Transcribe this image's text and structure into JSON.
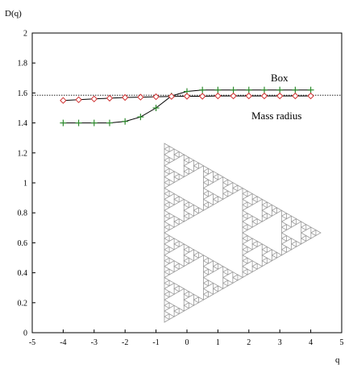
{
  "chart_data": {
    "type": "line",
    "title": "",
    "ylabel": "D(q)",
    "xlabel": "q",
    "xlim": [
      -5,
      5
    ],
    "ylim": [
      0,
      2
    ],
    "xticks": [
      -5,
      -4,
      -3,
      -2,
      -1,
      0,
      1,
      2,
      3,
      4,
      5
    ],
    "yticks": [
      0,
      0.2,
      0.4,
      0.6,
      0.8,
      1,
      1.2,
      1.4,
      1.6,
      1.8,
      2
    ],
    "ytick_labels": [
      "0",
      "0.2",
      "0.4",
      "0.6",
      "0.8",
      "1",
      "1.2",
      "1.4",
      "1.6",
      "1.8",
      "2"
    ],
    "grid": false,
    "series": [
      {
        "name": "Box",
        "marker": "plus",
        "color": "#2e8b2e",
        "points": [
          [
            -4,
            1.4
          ],
          [
            -3.5,
            1.4
          ],
          [
            -3,
            1.4
          ],
          [
            -2.5,
            1.4
          ],
          [
            -2,
            1.41
          ],
          [
            -1.5,
            1.44
          ],
          [
            -1,
            1.5
          ],
          [
            -0.5,
            1.58
          ],
          [
            0,
            1.61
          ],
          [
            0.5,
            1.62
          ],
          [
            1,
            1.62
          ],
          [
            1.5,
            1.62
          ],
          [
            2,
            1.62
          ],
          [
            2.5,
            1.62
          ],
          [
            3,
            1.62
          ],
          [
            3.5,
            1.62
          ],
          [
            4,
            1.62
          ]
        ]
      },
      {
        "name": "Mass radius",
        "marker": "diamond",
        "color": "#d03030",
        "points": [
          [
            -4,
            1.55
          ],
          [
            -3.5,
            1.555
          ],
          [
            -3,
            1.56
          ],
          [
            -2.5,
            1.565
          ],
          [
            -2,
            1.57
          ],
          [
            -1.5,
            1.572
          ],
          [
            -1,
            1.575
          ],
          [
            -0.5,
            1.577
          ],
          [
            0,
            1.578
          ],
          [
            0.5,
            1.578
          ],
          [
            1,
            1.58
          ],
          [
            1.5,
            1.58
          ],
          [
            2,
            1.58
          ],
          [
            2.5,
            1.58
          ],
          [
            3,
            1.58
          ],
          [
            3.5,
            1.58
          ],
          [
            4,
            1.58
          ]
        ]
      }
    ],
    "reference_line": {
      "y": 1.585,
      "style": "dotted",
      "color": "#000000"
    },
    "inset": {
      "type": "sierpinski-triangle",
      "depth": 5,
      "color": "#9a9a9a"
    }
  }
}
